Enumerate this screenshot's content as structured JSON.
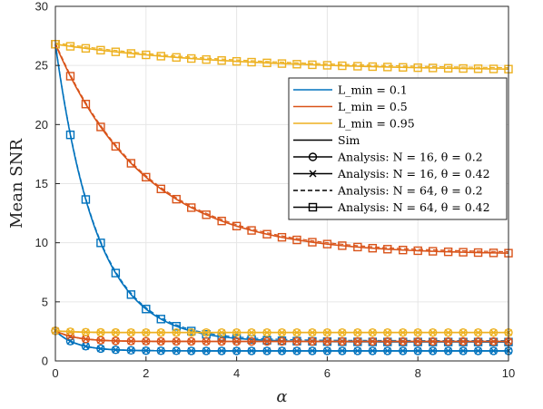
{
  "chart_data": {
    "type": "line",
    "xlabel": "α",
    "ylabel": "Mean SNR",
    "xlim": [
      0,
      10
    ],
    "ylim": [
      0,
      30
    ],
    "xticks": [
      "0",
      "2",
      "4",
      "6",
      "8",
      "10"
    ],
    "yticks": [
      "0",
      "5",
      "10",
      "15",
      "20",
      "25",
      "30"
    ],
    "grid": true,
    "legend_position": "right",
    "colors": {
      "L01": "#0072BD",
      "L05": "#D95319",
      "L095": "#EDB120",
      "axis": "#262626",
      "grid": "#e6e6e6"
    },
    "legend": [
      {
        "text": "L_min = 0.1",
        "color": "#0072BD",
        "style": "solid",
        "marker": "none"
      },
      {
        "text": "L_min = 0.5",
        "color": "#D95319",
        "style": "solid",
        "marker": "none"
      },
      {
        "text": "L_min = 0.95",
        "color": "#EDB120",
        "style": "solid",
        "marker": "none"
      },
      {
        "text": "Sim",
        "color": "#000000",
        "style": "solid",
        "marker": "none"
      },
      {
        "text": "Analysis: N = 16, θ = 0.2",
        "color": "#000000",
        "style": "solid",
        "marker": "circle"
      },
      {
        "text": "Analysis: N = 16, θ = 0.42",
        "color": "#000000",
        "style": "solid",
        "marker": "x"
      },
      {
        "text": "Analysis: N = 64, θ = 0.2",
        "color": "#000000",
        "style": "dashed",
        "marker": "none"
      },
      {
        "text": "Analysis: N = 64, θ = 0.42",
        "color": "#000000",
        "style": "solid",
        "marker": "square"
      }
    ],
    "marker_x": [
      0,
      0.33,
      0.67,
      1.0,
      1.33,
      1.67,
      2.0,
      2.33,
      2.67,
      3.0,
      3.33,
      3.67,
      4.0,
      4.33,
      4.67,
      5.0,
      5.33,
      5.67,
      6.0,
      6.33,
      6.67,
      7.0,
      7.33,
      7.67,
      8.0,
      8.33,
      8.67,
      9.0,
      9.33,
      9.67,
      10.0
    ],
    "series": [
      {
        "color": "L01",
        "marker": "square",
        "y0": 26.8,
        "yinf": 1.6,
        "k": 1.1
      },
      {
        "color": "L05",
        "marker": "square",
        "y0": 26.8,
        "yinf": 9.0,
        "k": 0.5
      },
      {
        "color": "L095",
        "marker": "square",
        "y0": 26.8,
        "yinf": 24.5,
        "k": 0.25
      },
      {
        "color": "L01",
        "marker": "circle",
        "y0": 2.55,
        "yinf": 0.85,
        "k": 2.2
      },
      {
        "color": "L05",
        "marker": "circle",
        "y0": 2.55,
        "yinf": 1.65,
        "k": 2.2
      },
      {
        "color": "L095",
        "marker": "circle",
        "y0": 2.55,
        "yinf": 2.4,
        "k": 2.2
      },
      {
        "color": "L01",
        "marker": "x",
        "y0": 2.55,
        "yinf": 0.85,
        "k": 2.2
      },
      {
        "color": "L05",
        "marker": "x",
        "y0": 2.55,
        "yinf": 1.65,
        "k": 2.2
      },
      {
        "color": "L095",
        "marker": "x",
        "y0": 2.55,
        "yinf": 2.4,
        "k": 2.2
      }
    ]
  }
}
